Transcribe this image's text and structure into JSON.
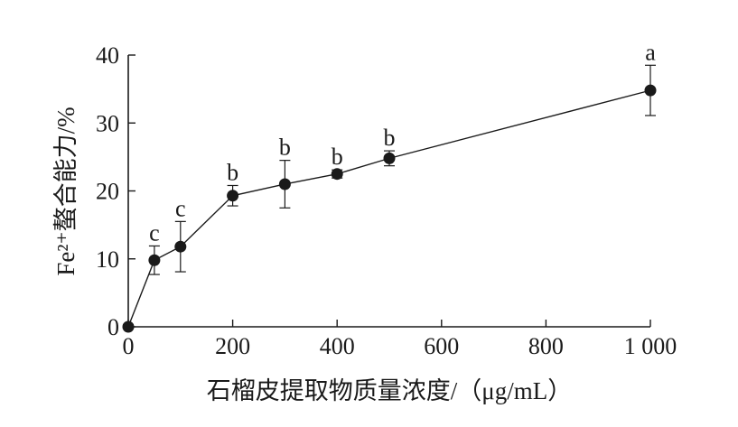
{
  "chart_data": {
    "type": "line",
    "title": "",
    "xlabel": "石榴皮提取物质量浓度/（μg/mL）",
    "ylabel": "Fe²⁺螯合能力/%",
    "xlim": [
      0,
      1000
    ],
    "ylim": [
      0,
      40
    ],
    "x_ticks": [
      0,
      200,
      400,
      600,
      800,
      1000
    ],
    "x_tick_labels": [
      "0",
      "200",
      "400",
      "600",
      "800",
      "1 000"
    ],
    "y_ticks": [
      0,
      10,
      20,
      30,
      40
    ],
    "y_tick_labels": [
      "0",
      "10",
      "20",
      "30",
      "40"
    ],
    "grid": false,
    "legend": "none",
    "series": [
      {
        "x": [
          0,
          50,
          100,
          200,
          300,
          400,
          500,
          1000
        ],
        "y": [
          0,
          9.8,
          11.8,
          19.3,
          21.0,
          22.5,
          24.8,
          34.8
        ],
        "error": [
          0.3,
          2.1,
          3.7,
          1.5,
          3.5,
          0.6,
          1.1,
          3.7
        ],
        "letters": [
          "",
          "c",
          "c",
          "b",
          "b",
          "b",
          "b",
          "a"
        ]
      }
    ]
  }
}
